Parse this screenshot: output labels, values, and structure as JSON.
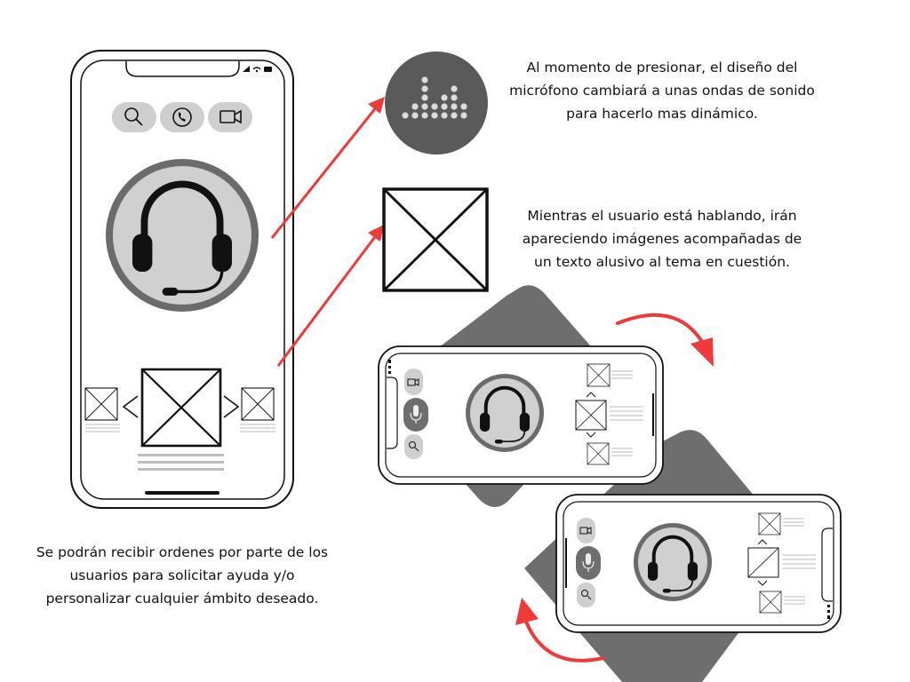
{
  "captions": {
    "sound_waves_note": "Al momento de presionar, el diseño del micrófono cambiará a unas ondas de sonido para hacerlo mas dinámico.",
    "images_note": "Mientras el usuario está hablando, irán apareciendo imágenes acompañadas de un texto alusivo al tema en cuestión.",
    "orders_note": "Se podrán recibir ordenes por parte de los usuarios para solicitar ayuda y/o personalizar cualquier ámbito deseado."
  },
  "colors": {
    "arrow": "#f03a3a",
    "dark_gray": "#5a5a5a",
    "mid_gray": "#6e6e6e",
    "light_gray": "#d0d0d0",
    "outline": "#111111"
  },
  "icons": [
    "search-icon",
    "phone-icon",
    "video-camera-icon",
    "headphones-icon",
    "microphone-icon",
    "sound-wave-icon",
    "image-placeholder-icon"
  ]
}
